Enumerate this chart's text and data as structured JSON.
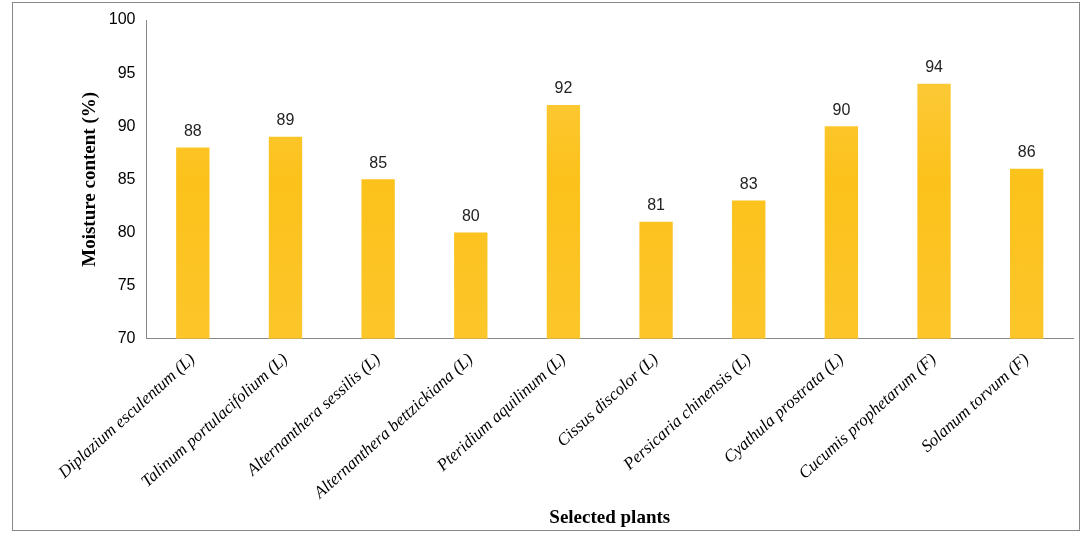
{
  "chart_data": {
    "type": "bar",
    "xlabel": "Selected plants",
    "ylabel": "Moisture content (%)",
    "categories": [
      "Diplazium esculentum (L)",
      "Talinum portulacifolium (L)",
      "Alternanthera sessilis (L)",
      "Alternanthera bettzickiana (L)",
      "Pteridium aquilinum (L)",
      "Cissus discolor (L)",
      "Persicaria chinensis (L)",
      "Cyathula prostrata (L)",
      "Cucumis prophetarum (F)",
      "Solanum torvum (F)"
    ],
    "values": [
      88,
      89,
      85,
      80,
      92,
      81,
      83,
      90,
      94,
      86
    ],
    "color": "#fcc21b",
    "ylim": [
      70,
      100
    ],
    "yticks": [
      70,
      75,
      80,
      85,
      90,
      95,
      100
    ],
    "grid": false,
    "legend": false,
    "data_labels": true
  }
}
